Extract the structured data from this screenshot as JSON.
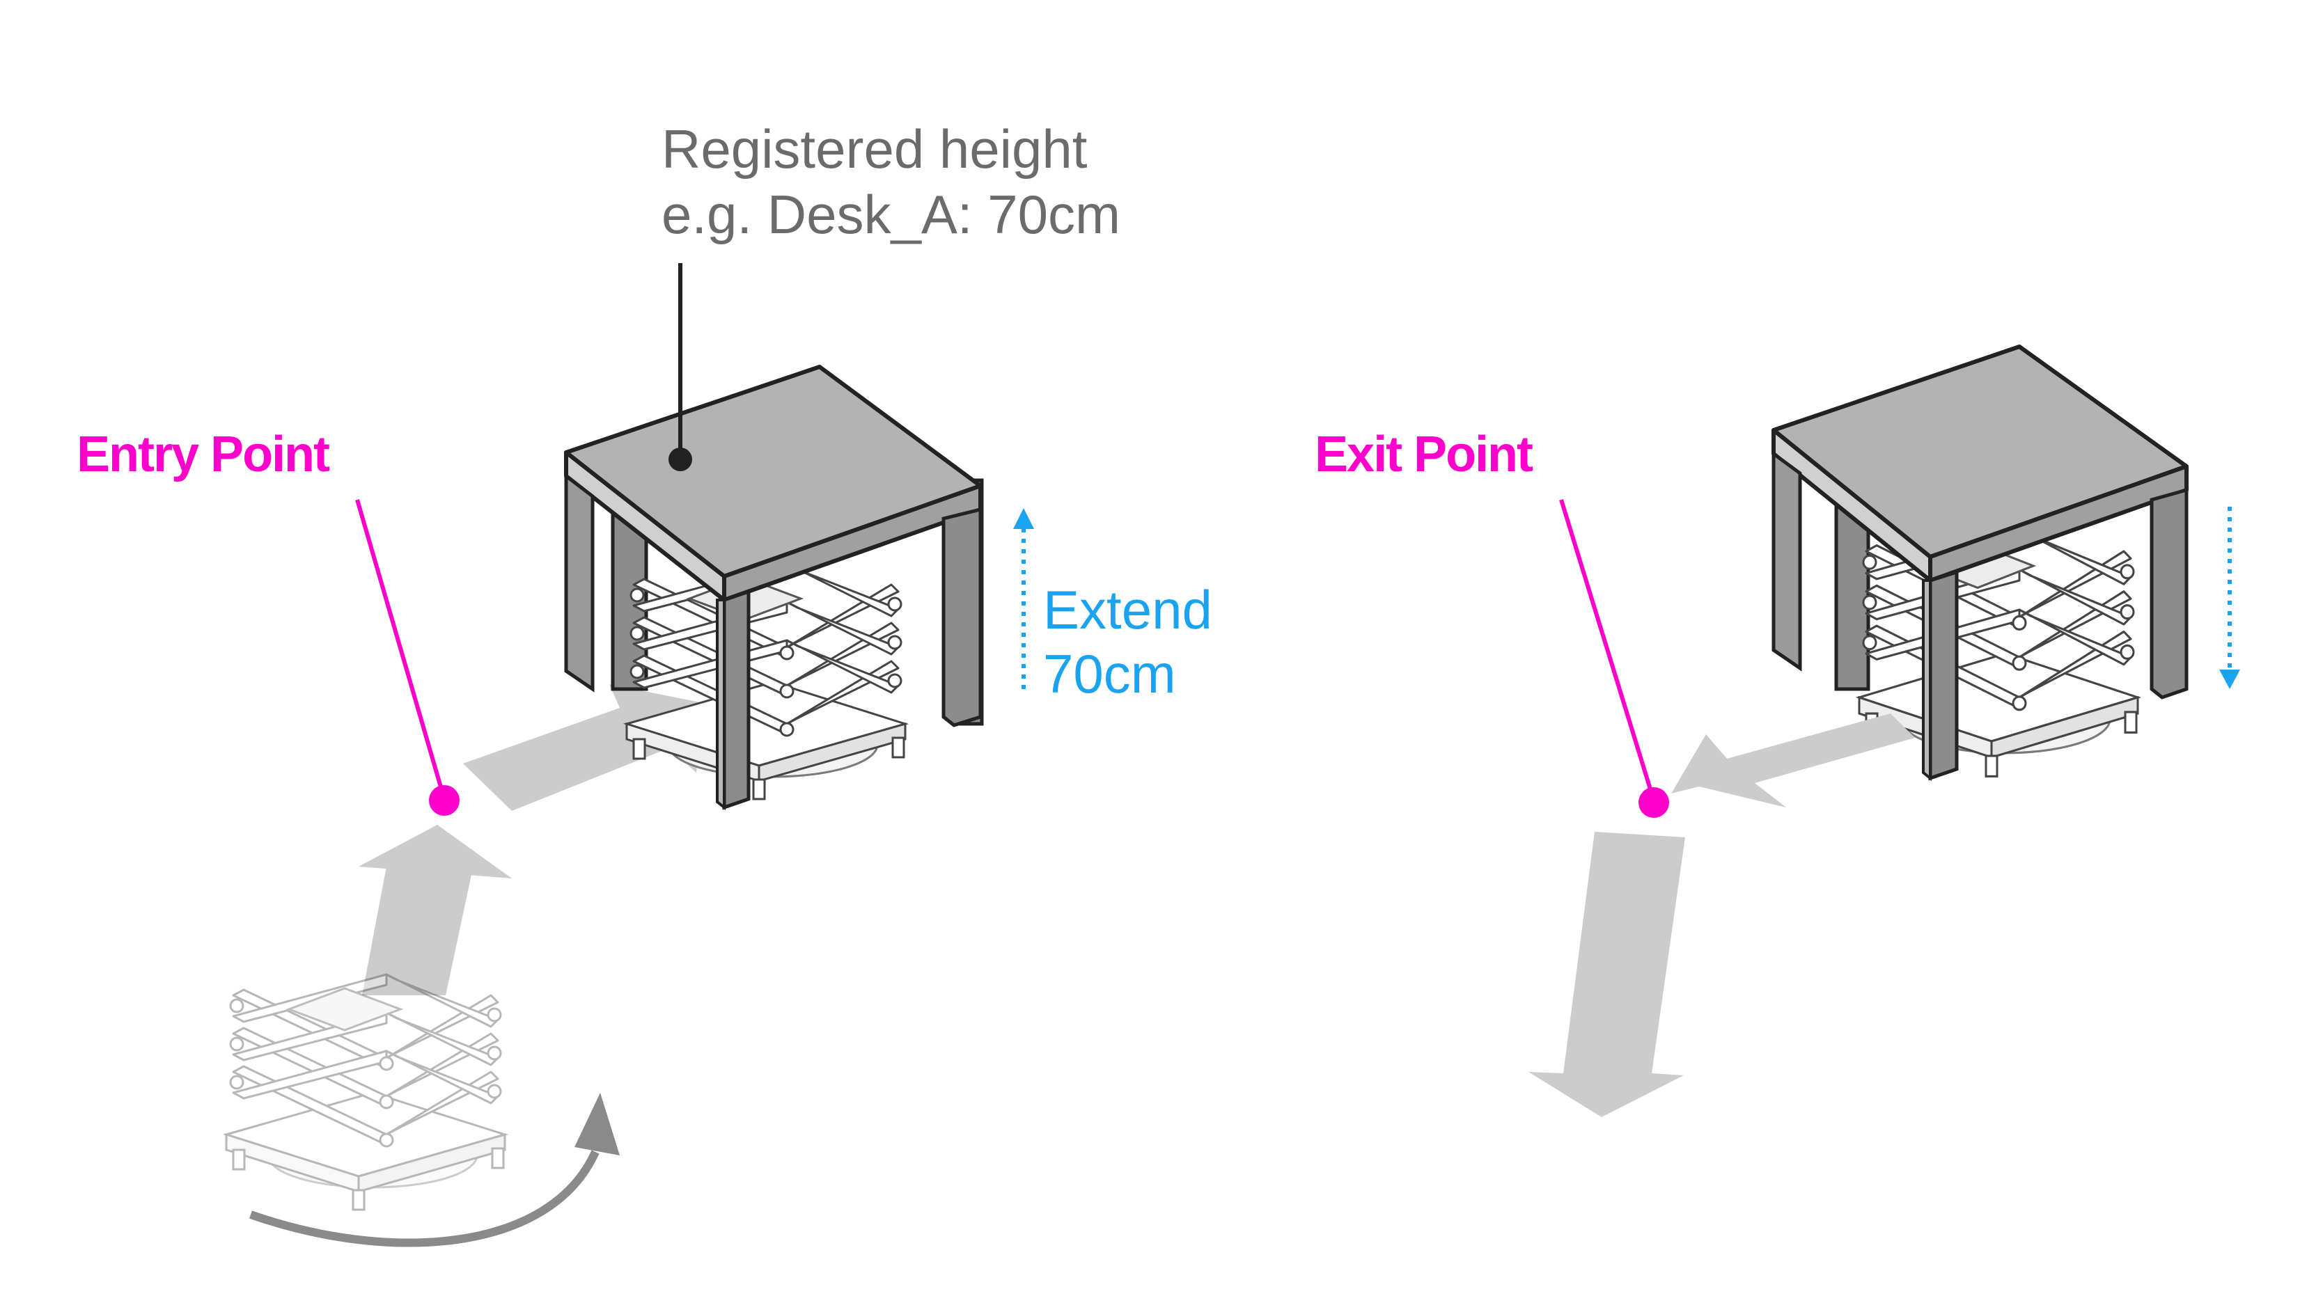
{
  "annotation": {
    "line1": "Registered height",
    "line2": "e.g. Desk_A: 70cm"
  },
  "entry": {
    "label": "Entry Point"
  },
  "exit": {
    "label": "Exit Point"
  },
  "extend": {
    "line1": "Extend",
    "line2": "70cm"
  },
  "colors": {
    "magenta": "#ff00cc",
    "blue": "#1aa3f0",
    "table_top": "#b3b3b3",
    "table_side": "#8c8c8c",
    "arrow": "#cccccc",
    "rotate_arrow": "#8a8a8a",
    "text_gray": "#6b6b6b",
    "line_dark": "#222222"
  }
}
